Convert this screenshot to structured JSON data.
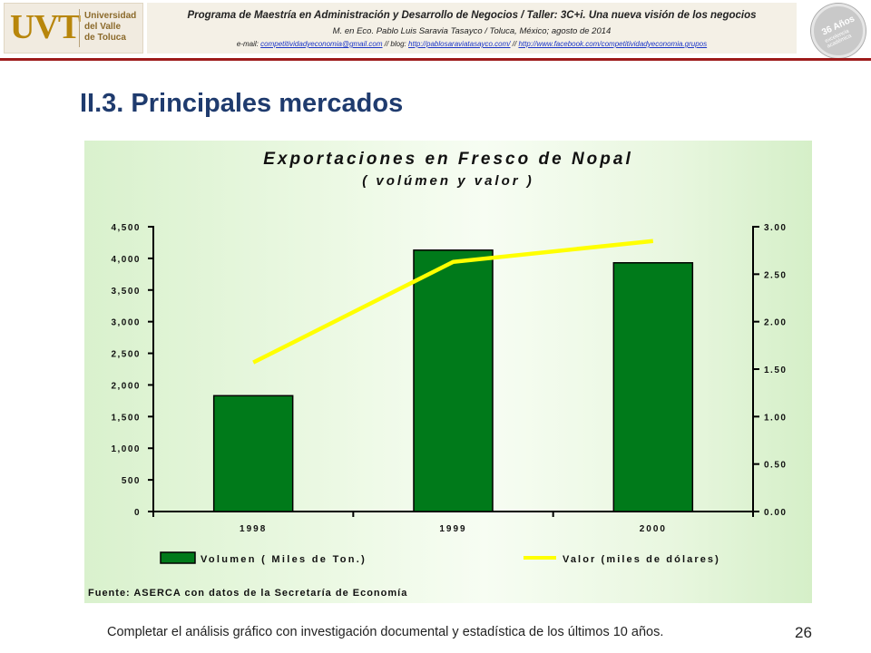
{
  "header": {
    "logo_mark": "UVT",
    "logo_lines": [
      "Universidad",
      "del Valle",
      "de Toluca"
    ],
    "program_title": "Programa de Maestría en Administración y Desarrollo de Negocios / Taller: 3C+i. Una nueva visión de los negocios",
    "program_author": "M. en Eco. Pablo Luis Saravia Tasayco / Toluca, México; agosto de 2014",
    "email_label": "e-mail:",
    "email": "competitividadyeconomia@gmail.com",
    "blog_label": "// blog:",
    "blog_url": "http://pablosaraviatasayco.com/",
    "separator": "//",
    "facebook_url": "http://www.facebook.com/competitividadyeconomia.grupos",
    "badge_text": "36 Años",
    "badge_sub": "excelencia académica"
  },
  "page": {
    "title": "II.3. Principales mercados",
    "footer_note": "Completar el análisis gráfico con investigación documental y estadística de los últimos 10 años.",
    "page_number": "26"
  },
  "colors": {
    "title": "#1f3b6e",
    "rule": "#9e1b1b",
    "bar": "#007a1a",
    "line": "#ffff00"
  },
  "chart_data": {
    "type": "bar",
    "title": "Exportaciones en Fresco de Nopal",
    "subtitle": "( volúmen y valor )",
    "categories": [
      "1998",
      "1999",
      "2000"
    ],
    "series": [
      {
        "name": "Volumen ( Miles de Ton.)",
        "type": "bar",
        "axis": "left",
        "values": [
          1830,
          4130,
          3930
        ]
      },
      {
        "name": "Valor (miles de dólares)",
        "type": "line",
        "axis": "right",
        "values": [
          1.57,
          2.63,
          2.85
        ]
      }
    ],
    "y_left": {
      "ylim": [
        0,
        4500
      ],
      "ticks": [
        0,
        500,
        1000,
        1500,
        2000,
        2500,
        3000,
        3500,
        4000,
        4500
      ],
      "tick_labels": [
        "0",
        "500",
        "1,000",
        "1,500",
        "2,000",
        "2,500",
        "3,000",
        "3,500",
        "4,000",
        "4,500"
      ]
    },
    "y_right": {
      "ylim": [
        0,
        3.0
      ],
      "ticks": [
        0,
        0.5,
        1.0,
        1.5,
        2.0,
        2.5,
        3.0
      ],
      "tick_labels": [
        "0.00",
        "0.50",
        "1.00",
        "1.50",
        "2.00",
        "2.50",
        "3.00"
      ]
    },
    "legend_position": "bottom",
    "source": "Fuente: ASERCA con datos de la Secretaría de Economía",
    "grid": false
  }
}
